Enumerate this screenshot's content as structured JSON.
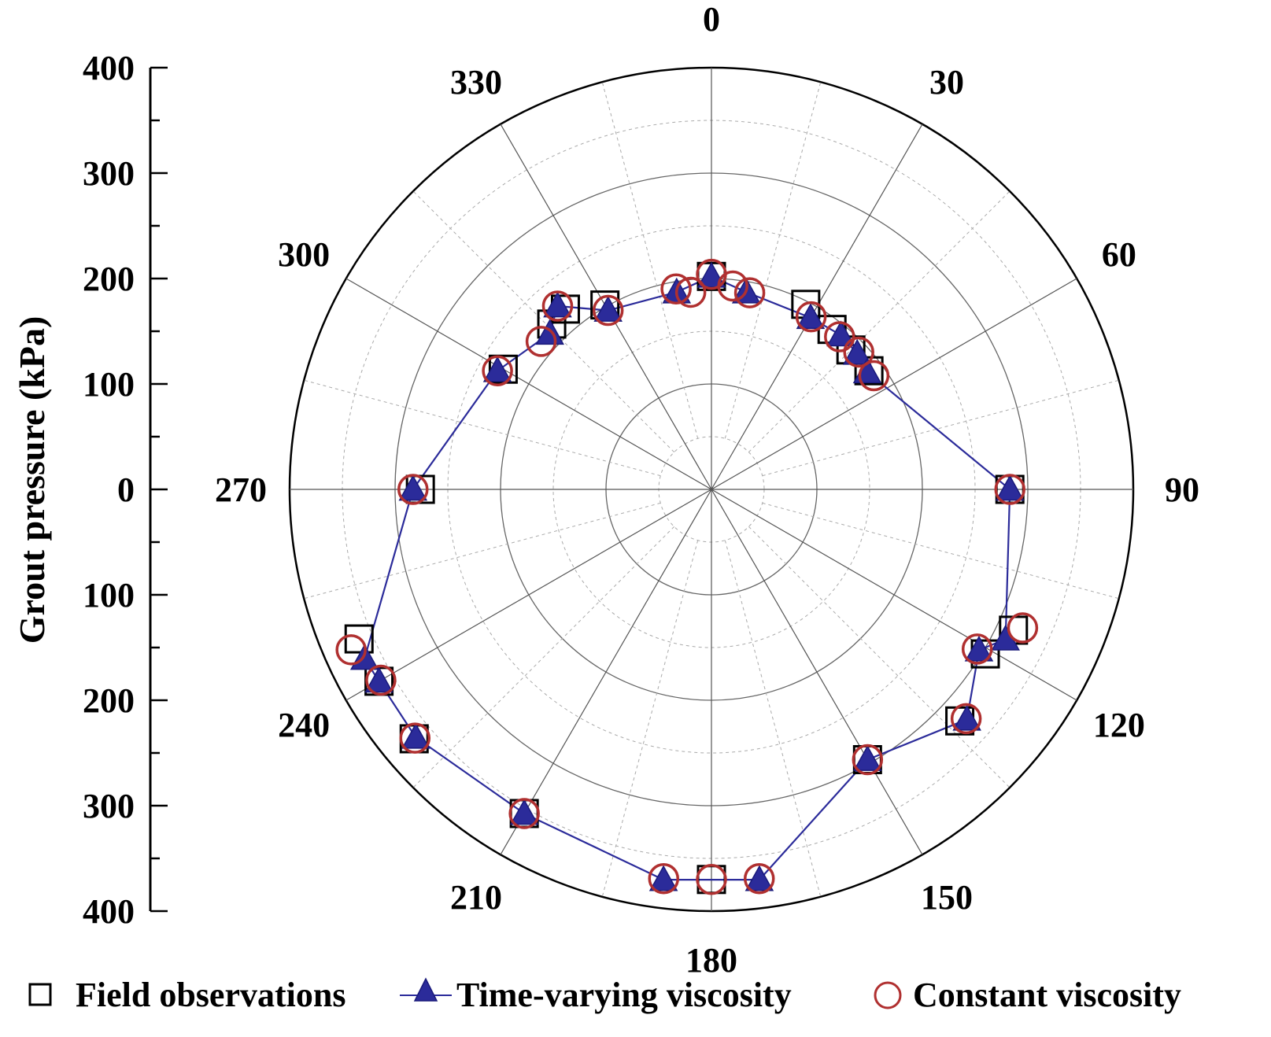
{
  "chart_data": {
    "type": "polar-scatter",
    "ylabel": "Grout pressure (kPa)",
    "r_axis_ticks": [
      "400",
      "300",
      "200",
      "100",
      "0",
      "100",
      "200",
      "300",
      "400"
    ],
    "r_axis_range": [
      -400,
      400
    ],
    "radial_range": [
      0,
      400
    ],
    "radial_gridlines": [
      50,
      100,
      150,
      200,
      250,
      300,
      350
    ],
    "major_radial_gridlines": [
      100,
      200,
      300
    ],
    "angle_ticks": [
      0,
      30,
      60,
      90,
      120,
      150,
      180,
      210,
      240,
      270,
      300,
      330
    ],
    "angle_labels": [
      "0",
      "30",
      "60",
      "90",
      "120",
      "150",
      "180",
      "210",
      "240",
      "270",
      "300",
      "330"
    ],
    "legend": [
      "Field observations",
      "Time-varying viscosity",
      "Constant viscosity"
    ],
    "colors": {
      "field": "#000000",
      "time_varying": "#2b2b9a",
      "constant": "#b03030",
      "grid": "#555555"
    },
    "series": [
      {
        "name": "Field observations",
        "marker": "square",
        "points": [
          {
            "angle": 0,
            "r": 202
          },
          {
            "angle": 27,
            "r": 197
          },
          {
            "angle": 37,
            "r": 190
          },
          {
            "angle": 45,
            "r": 187
          },
          {
            "angle": 53,
            "r": 187
          },
          {
            "angle": 90,
            "r": 283
          },
          {
            "angle": 115,
            "r": 316
          },
          {
            "angle": 121,
            "r": 303
          },
          {
            "angle": 133,
            "r": 322
          },
          {
            "angle": 150,
            "r": 296
          },
          {
            "angle": 180,
            "r": 370
          },
          {
            "angle": 210,
            "r": 355
          },
          {
            "angle": 230,
            "r": 368
          },
          {
            "angle": 240,
            "r": 364
          },
          {
            "angle": 247,
            "r": 363
          },
          {
            "angle": 270,
            "r": 276
          },
          {
            "angle": 300,
            "r": 228
          },
          {
            "angle": 316,
            "r": 218
          },
          {
            "angle": 321,
            "r": 220
          },
          {
            "angle": 330,
            "r": 202
          }
        ]
      },
      {
        "name": "Time-varying viscosity",
        "marker": "triangle",
        "points": [
          {
            "angle": 0,
            "r": 202
          },
          {
            "angle": 10,
            "r": 190
          },
          {
            "angle": 30,
            "r": 188
          },
          {
            "angle": 40,
            "r": 191
          },
          {
            "angle": 47,
            "r": 189
          },
          {
            "angle": 53,
            "r": 185
          },
          {
            "angle": 90,
            "r": 283
          },
          {
            "angle": 117,
            "r": 313
          },
          {
            "angle": 121,
            "r": 296
          },
          {
            "angle": 132,
            "r": 326
          },
          {
            "angle": 150,
            "r": 296
          },
          {
            "angle": 173,
            "r": 373
          },
          {
            "angle": 187,
            "r": 373
          },
          {
            "angle": 210,
            "r": 355
          },
          {
            "angle": 230,
            "r": 366
          },
          {
            "angle": 240,
            "r": 364
          },
          {
            "angle": 244,
            "r": 366
          },
          {
            "angle": 270,
            "r": 283
          },
          {
            "angle": 299,
            "r": 232
          },
          {
            "angle": 314,
            "r": 213
          },
          {
            "angle": 320,
            "r": 227
          },
          {
            "angle": 330,
            "r": 196
          },
          {
            "angle": 350,
            "r": 190
          }
        ]
      },
      {
        "name": "Constant viscosity",
        "marker": "circle",
        "points": [
          {
            "angle": 0,
            "r": 204
          },
          {
            "angle": 6,
            "r": 194
          },
          {
            "angle": 11,
            "r": 190
          },
          {
            "angle": 30,
            "r": 189
          },
          {
            "angle": 40,
            "r": 189
          },
          {
            "angle": 47,
            "r": 191
          },
          {
            "angle": 55,
            "r": 188
          },
          {
            "angle": 90,
            "r": 283
          },
          {
            "angle": 114,
            "r": 323
          },
          {
            "angle": 121,
            "r": 294
          },
          {
            "angle": 132,
            "r": 325
          },
          {
            "angle": 150,
            "r": 296
          },
          {
            "angle": 173,
            "r": 372
          },
          {
            "angle": 180,
            "r": 370
          },
          {
            "angle": 187,
            "r": 372
          },
          {
            "angle": 210,
            "r": 355
          },
          {
            "angle": 230,
            "r": 367
          },
          {
            "angle": 240,
            "r": 362
          },
          {
            "angle": 246,
            "r": 374
          },
          {
            "angle": 270,
            "r": 283
          },
          {
            "angle": 299,
            "r": 232
          },
          {
            "angle": 311,
            "r": 214
          },
          {
            "angle": 320,
            "r": 227
          },
          {
            "angle": 330,
            "r": 196
          },
          {
            "angle": 350,
            "r": 193
          },
          {
            "angle": 354,
            "r": 188
          }
        ]
      }
    ]
  }
}
